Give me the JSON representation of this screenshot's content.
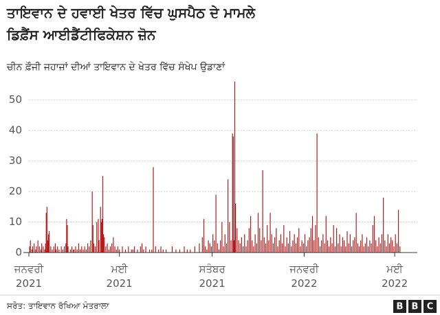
{
  "chart_data": {
    "type": "bar",
    "title": [
      "ਤਾਇਵਾਨ ਦੇ ਹਵਾਈ ਖੇਤਰ ਵਿੱਚ ਘੁਸਪੈਠ ਦੇ ਮਾਮਲੇ",
      "ਡਿਫ਼ੈਂਸ ਆਈਡੈਂਟੀਫਿਕੇਸ਼ਨ ਜ਼ੋਨ"
    ],
    "subtitle": "ਚੀਨ ਫ਼ੌਜੀ ਜਹਾਜ਼ਾਂ ਦੀਆਂ ਤਾਇਵਾਨ ਦੇ ਖੇਤਰ ਵਿੱਚ ਸੰਖੇਪ ਉਡਾਣਾਂ",
    "source": "ਸਰੋਤ: ਤਾਇਵਾਨ ਰੱਖਿਆ ਮੰਤਰਾਲਾ",
    "logo": "BBC",
    "color": "#b31b1b",
    "grid": true,
    "ylim": [
      0,
      56
    ],
    "yticks": [
      0,
      10,
      20,
      30,
      40,
      50
    ],
    "xlim": [
      0,
      515
    ],
    "xticks": [
      {
        "value": 0,
        "label": "ਜਨਵਰੀ 2021"
      },
      {
        "value": 120,
        "label": "ਮਈ 2021"
      },
      {
        "value": 243,
        "label": "ਸਤੰਬਰ 2021"
      },
      {
        "value": 365,
        "label": "ਜਨਵਰੀ 2022"
      },
      {
        "value": 485,
        "label": "ਮਈ 2022"
      }
    ],
    "x": [
      1,
      2,
      4,
      5,
      7,
      9,
      10,
      12,
      14,
      16,
      17,
      19,
      21,
      22,
      23,
      24,
      25,
      26,
      27,
      29,
      31,
      33,
      35,
      36,
      38,
      40,
      43,
      45,
      47,
      49,
      50,
      51,
      52,
      55,
      57,
      59,
      60,
      62,
      64,
      66,
      68,
      70,
      72,
      74,
      76,
      78,
      80,
      82,
      84,
      85,
      86,
      88,
      90,
      92,
      93,
      95,
      96,
      97,
      98,
      99,
      100,
      102,
      104,
      106,
      108,
      110,
      112,
      114,
      116,
      118,
      120,
      124,
      128,
      132,
      136,
      138,
      140,
      144,
      148,
      150,
      152,
      155,
      160,
      163,
      165,
      168,
      172,
      175,
      178,
      182,
      190,
      195,
      200,
      206,
      210,
      214,
      220,
      226,
      230,
      232,
      234,
      236,
      238,
      240,
      242,
      244,
      246,
      248,
      250,
      252,
      254,
      256,
      258,
      260,
      262,
      264,
      266,
      268,
      270,
      271,
      272,
      273,
      274,
      276,
      278,
      280,
      282,
      284,
      286,
      288,
      290,
      292,
      294,
      296,
      298,
      300,
      302,
      304,
      306,
      308,
      310,
      312,
      314,
      316,
      318,
      320,
      322,
      324,
      326,
      328,
      330,
      332,
      334,
      336,
      338,
      340,
      342,
      344,
      346,
      348,
      350,
      352,
      354,
      356,
      358,
      360,
      362,
      364,
      366,
      368,
      370,
      372,
      374,
      376,
      378,
      380,
      382,
      384,
      386,
      388,
      390,
      392,
      394,
      396,
      398,
      400,
      402,
      404,
      406,
      408,
      410,
      412,
      414,
      416,
      418,
      420,
      422,
      424,
      426,
      428,
      430,
      432,
      434,
      436,
      438,
      440,
      442,
      444,
      446,
      448,
      450,
      452,
      454,
      456,
      458,
      460,
      462,
      464,
      466,
      468,
      470,
      472,
      474,
      476,
      478,
      480,
      482,
      484,
      486,
      488,
      490,
      492
    ],
    "values": [
      2,
      4,
      1,
      2,
      3,
      1,
      2,
      4,
      2,
      1,
      3,
      2,
      1,
      3,
      13,
      15,
      4,
      6,
      7,
      2,
      1,
      2,
      3,
      1,
      2,
      1,
      2,
      1,
      2,
      3,
      11,
      9,
      2,
      1,
      2,
      1,
      1,
      2,
      1,
      3,
      1,
      2,
      1,
      2,
      1,
      3,
      2,
      4,
      20,
      9,
      3,
      2,
      10,
      11,
      4,
      15,
      10,
      11,
      25,
      6,
      5,
      2,
      3,
      1,
      2,
      3,
      5,
      2,
      1,
      2,
      1,
      2,
      1,
      2,
      1,
      1,
      2,
      1,
      2,
      3,
      1,
      2,
      1,
      1,
      28,
      2,
      1,
      2,
      1,
      1,
      2,
      1,
      1,
      2,
      1,
      1,
      2,
      3,
      5,
      11,
      2,
      1,
      4,
      3,
      2,
      6,
      4,
      19,
      3,
      1,
      4,
      10,
      2,
      6,
      3,
      24,
      10,
      4,
      39,
      38,
      4,
      56,
      16,
      8,
      4,
      3,
      5,
      2,
      6,
      2,
      4,
      8,
      12,
      4,
      2,
      6,
      3,
      13,
      8,
      4,
      27,
      5,
      3,
      9,
      4,
      13,
      6,
      3,
      5,
      8,
      2,
      4,
      6,
      3,
      9,
      2,
      5,
      3,
      7,
      2,
      4,
      6,
      3,
      5,
      8,
      2,
      4,
      3,
      6,
      2,
      4,
      5,
      8,
      12,
      4,
      9,
      39,
      5,
      2,
      4,
      6,
      3,
      12,
      4,
      2,
      5,
      3,
      9,
      2,
      8,
      3,
      6,
      2,
      5,
      4,
      2,
      7,
      3,
      6,
      2,
      4,
      5,
      13,
      3,
      2,
      4,
      6,
      2,
      3,
      5,
      2,
      4,
      3,
      9,
      12,
      4,
      2,
      5,
      3,
      6,
      18,
      4,
      2,
      6,
      3,
      5,
      4,
      2,
      6,
      3,
      14,
      2
    ]
  }
}
